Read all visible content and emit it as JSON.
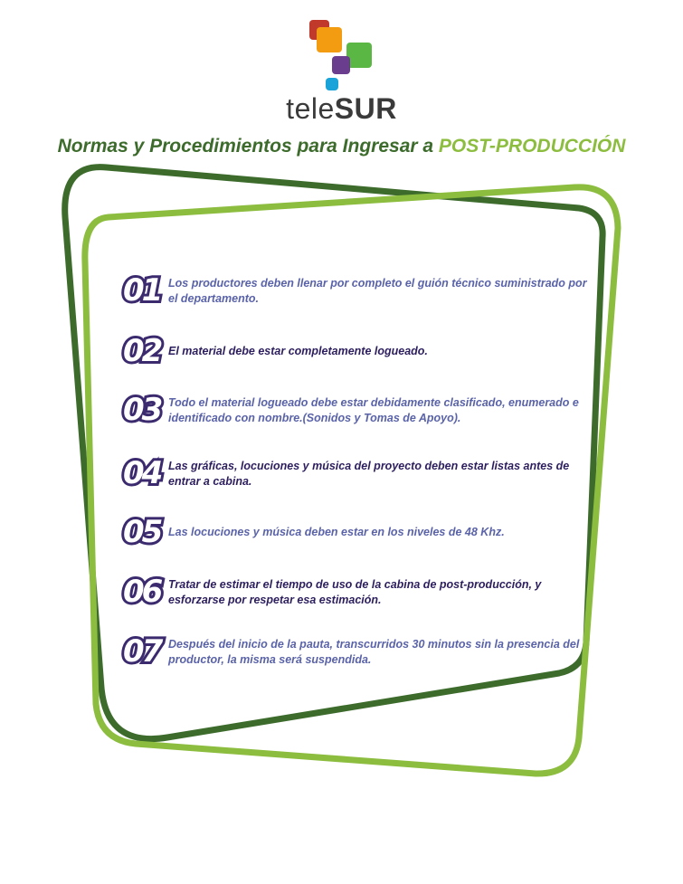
{
  "logo": {
    "text_prefix": "tele",
    "text_suffix": "SUR",
    "colors": [
      "#c0392b",
      "#f39c12",
      "#5ab744",
      "#6a3d8f",
      "#1aa3d9"
    ]
  },
  "headline": {
    "main": "Normas y Procedimientos para Ingresar a ",
    "accent": "POST-PRODUCCIÓN"
  },
  "rules": [
    {
      "num": "01",
      "text": "Los productores deben llenar por completo el guión técnico suministrado por el departamento."
    },
    {
      "num": "02",
      "text": "El material debe estar completamente logueado."
    },
    {
      "num": "03",
      "text": "Todo el material logueado debe estar debidamente clasificado, enumerado e identificado con nombre.(Sonidos y Tomas de Apoyo)."
    },
    {
      "num": "04",
      "text": "Las gráficas, locuciones y música del proyecto deben estar listas antes de entrar a cabina."
    },
    {
      "num": "05",
      "text": "Las locuciones y música deben estar en los niveles de 48 Khz."
    },
    {
      "num": "06",
      "text": "Tratar de estimar el tiempo de uso de la cabina de post-producción, y esforzarse por respetar esa estimación."
    },
    {
      "num": "07",
      "text": "Después del inicio de la pauta, transcurridos 30 minutos sin la presencia del productor, la misma será suspendida."
    }
  ],
  "colors": {
    "dark_green": "#3c6b2c",
    "light_green": "#8cbd3f",
    "number_purple": "#3b2a6e"
  }
}
